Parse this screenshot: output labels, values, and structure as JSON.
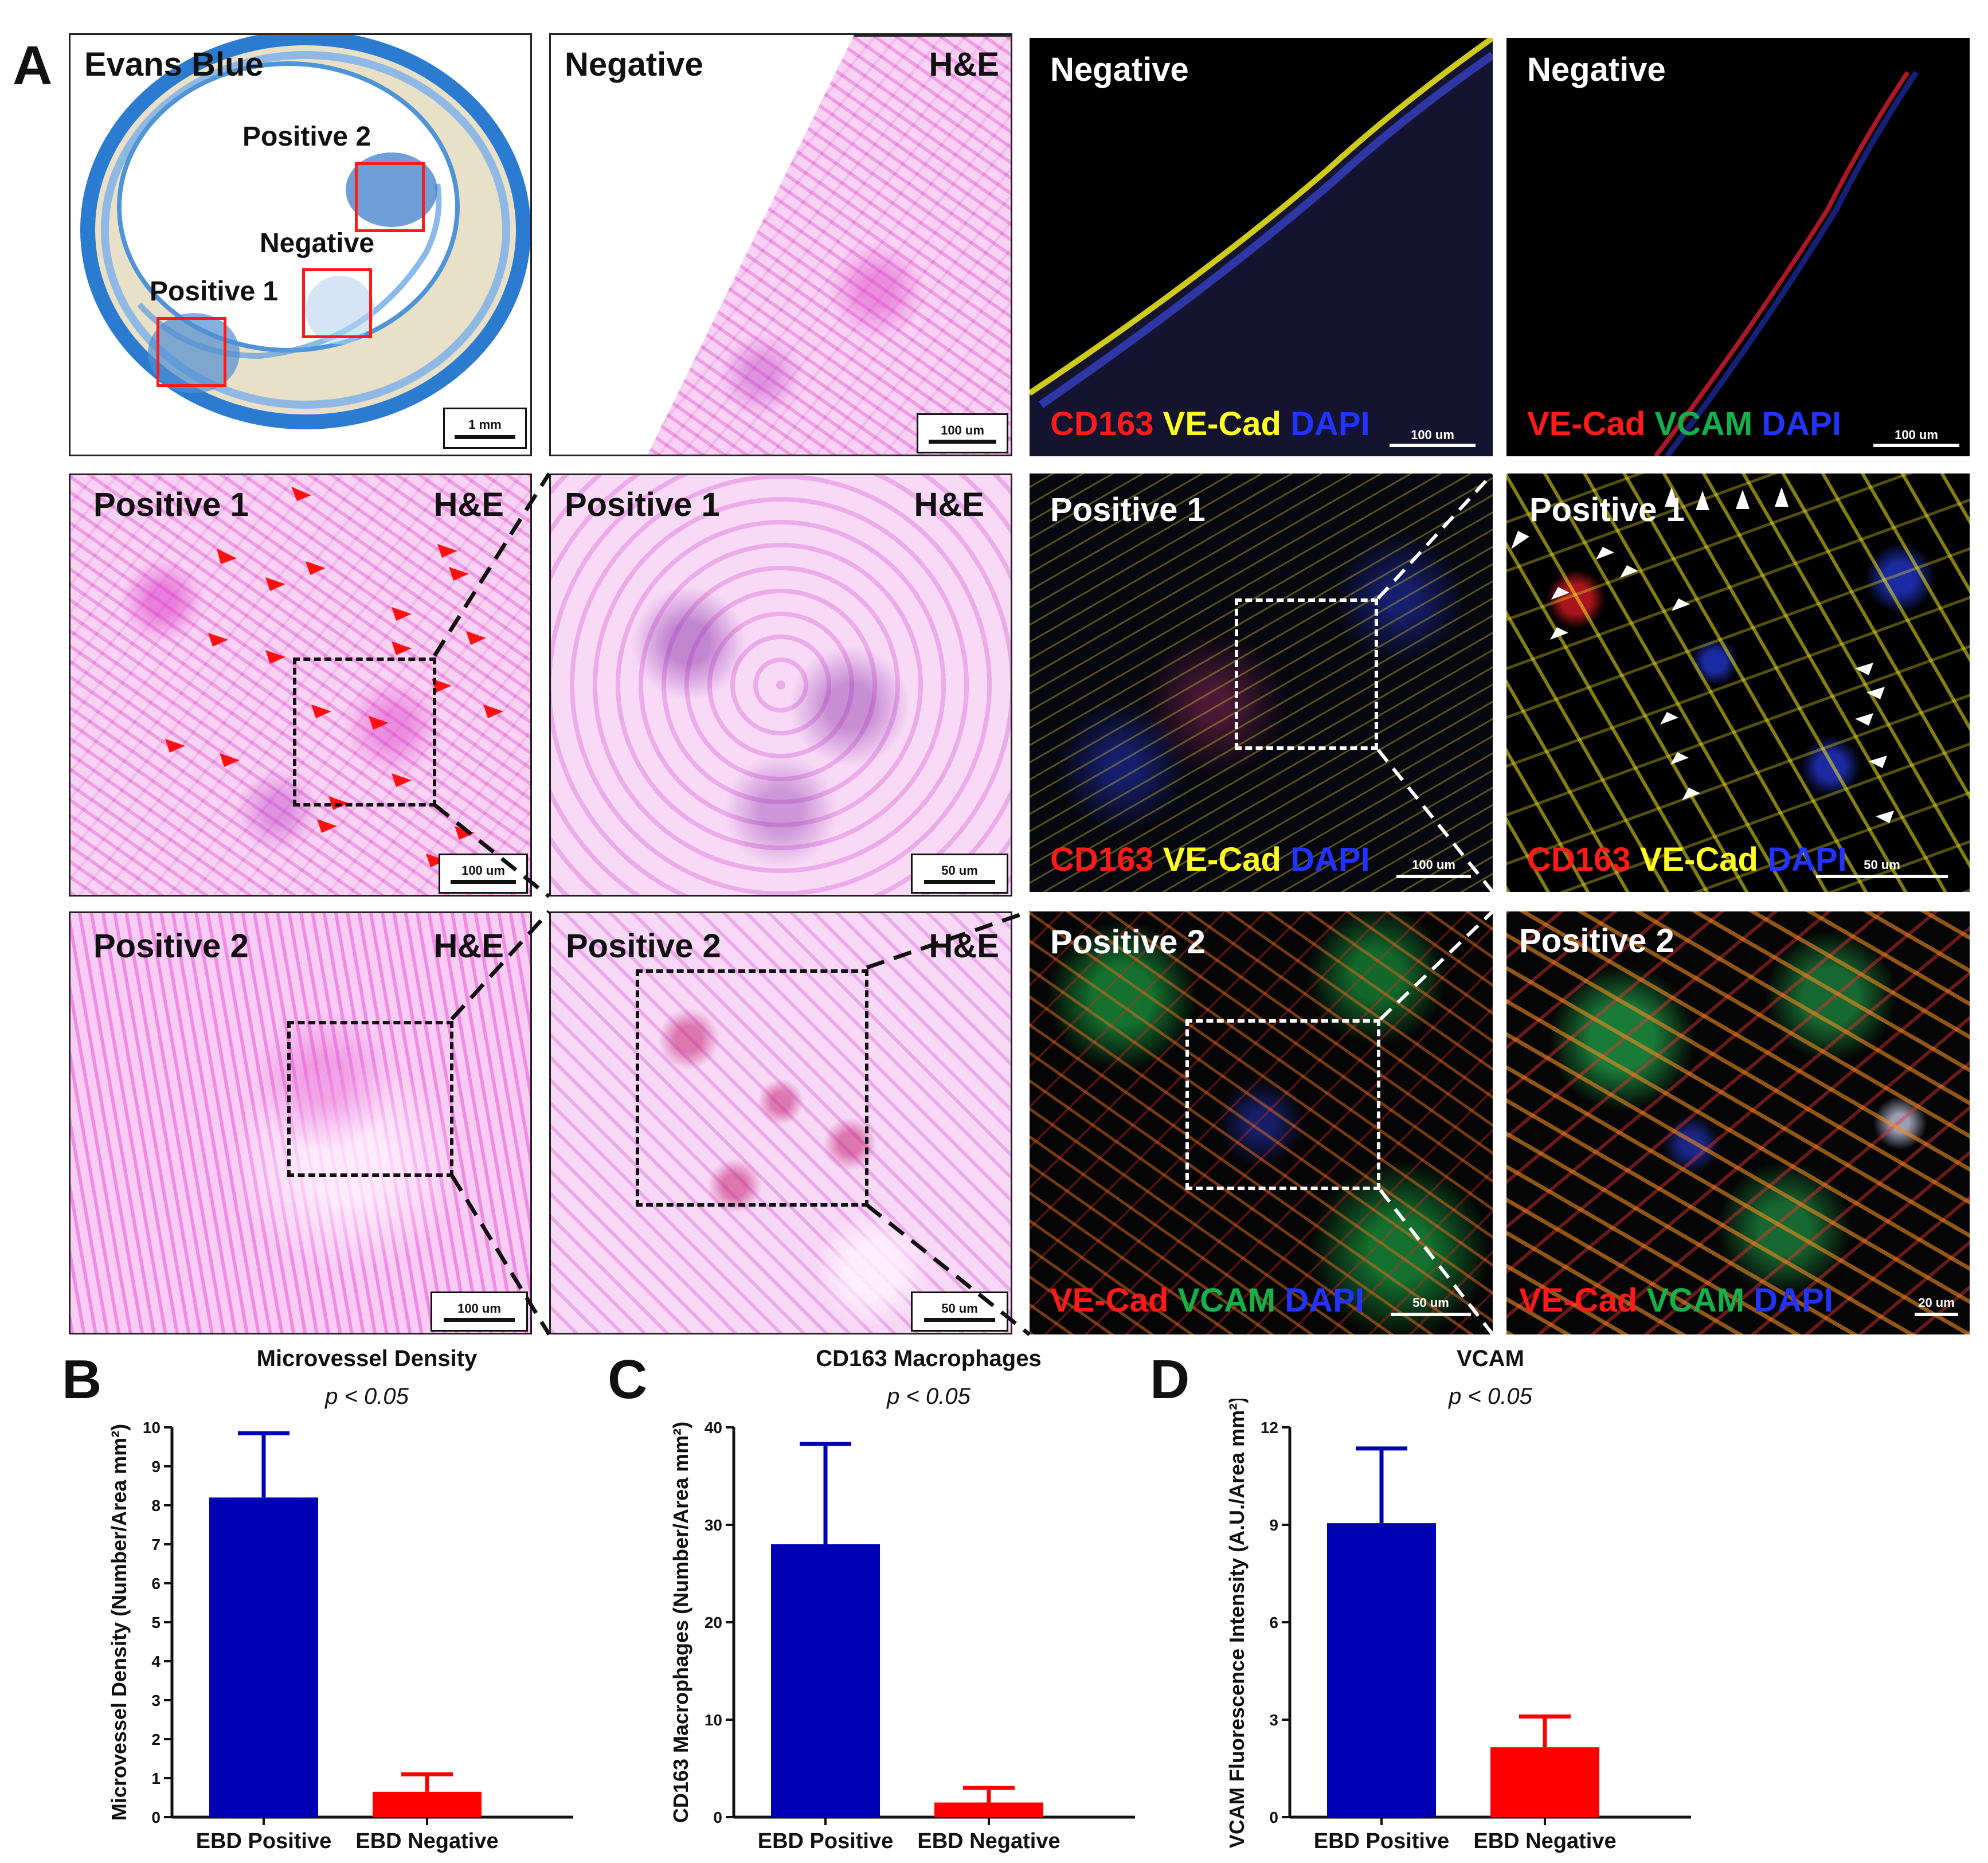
{
  "panel_a": {
    "letter": "A",
    "row1": {
      "evans_blue": {
        "label": "Evans Blue",
        "scale": "1 mm",
        "box_labels": {
          "positive2": "Positive 2",
          "negative": "Negative",
          "positive1": "Positive 1"
        }
      },
      "neg_he": {
        "label": "Negative",
        "stain": "H&E",
        "scale": "100 um"
      },
      "neg_fl1": {
        "label": "Negative",
        "scale": "100 um",
        "stains": [
          "CD163",
          "VE-Cad",
          "DAPI"
        ]
      },
      "neg_fl2": {
        "label": "Negative",
        "scale": "100 um",
        "stains": [
          "VE-Cad",
          "VCAM",
          "DAPI"
        ]
      }
    },
    "row2": {
      "pos1_he_low": {
        "label": "Positive 1",
        "stain": "H&E",
        "scale": "100 um"
      },
      "pos1_he_high": {
        "label": "Positive 1",
        "stain": "H&E",
        "scale": "50 um"
      },
      "pos1_fl_low": {
        "label": "Positive 1",
        "scale": "100 um",
        "stains": [
          "CD163",
          "VE-Cad",
          "DAPI"
        ]
      },
      "pos1_fl_high": {
        "label": "Positive 1",
        "scale": "50 um",
        "stains": [
          "CD163",
          "VE-Cad",
          "DAPI"
        ]
      }
    },
    "row3": {
      "pos2_he_low": {
        "label": "Positive 2",
        "stain": "H&E",
        "scale": "100 um"
      },
      "pos2_he_high": {
        "label": "Positive 2",
        "stain": "H&E",
        "scale": "50 um"
      },
      "pos2_fl_low": {
        "label": "Positive 2",
        "scale": "50 um",
        "stains": [
          "VE-Cad",
          "VCAM",
          "DAPI"
        ]
      },
      "pos2_fl_high": {
        "label": "Positive 2",
        "scale": "20 um",
        "stains": [
          "VE-Cad",
          "VCAM",
          "DAPI"
        ]
      }
    }
  },
  "colors": {
    "positive": "#0000b4",
    "negative": "#ff0000",
    "red": "#ff1a1a",
    "yellow": "#ffff22",
    "blue": "#2233ff",
    "green": "#14b14a"
  },
  "chart_data": [
    {
      "letter": "B",
      "type": "bar",
      "title": "Microvessel Density",
      "pvalue": "p < 0.05",
      "ylabel": "Microvessel Density (Number/Area mm²)",
      "categories": [
        "EBD Positive",
        "EBD Negative"
      ],
      "values": [
        8.2,
        0.65
      ],
      "errors": [
        1.65,
        0.45
      ],
      "ylim": [
        0,
        10
      ],
      "yticks": [
        "0",
        "1",
        "2",
        "3",
        "4",
        "5",
        "6",
        "7",
        "8",
        "9",
        "10"
      ]
    },
    {
      "letter": "C",
      "type": "bar",
      "title": "CD163 Macrophages",
      "pvalue": "p < 0.05",
      "ylabel": "CD163 Macrophages (Number/Area mm²)",
      "categories": [
        "EBD Positive",
        "EBD Negative"
      ],
      "values": [
        28,
        1.5
      ],
      "errors": [
        10.3,
        1.5
      ],
      "ylim": [
        0,
        40
      ],
      "yticks": [
        "0",
        "10",
        "20",
        "30",
        "40"
      ]
    },
    {
      "letter": "D",
      "type": "bar",
      "title": "VCAM",
      "pvalue": "p < 0.05",
      "ylabel": "VCAM Fluorescence Intensity (A.U./Area mm²)",
      "categories": [
        "EBD Positive",
        "EBD Negative"
      ],
      "values": [
        9.05,
        2.15
      ],
      "errors": [
        2.3,
        0.95
      ],
      "ylim": [
        0,
        12
      ],
      "yticks": [
        "0",
        "3",
        "6",
        "9",
        "12"
      ]
    }
  ]
}
